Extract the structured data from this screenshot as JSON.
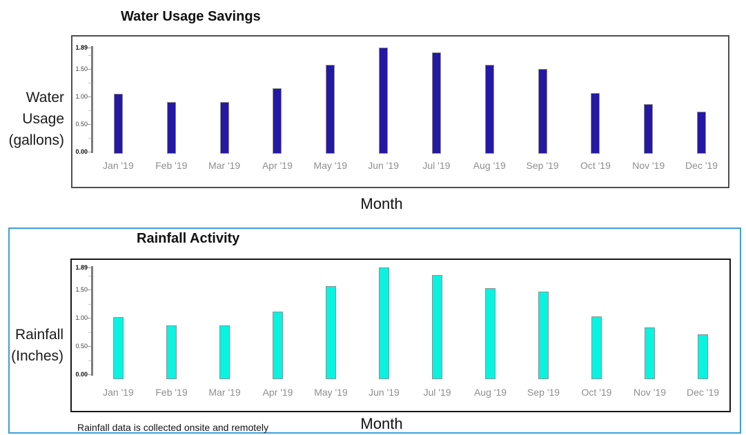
{
  "charts": [
    {
      "title": "Water Usage Savings",
      "ylabel_lines": [
        "Water",
        "Usage",
        "(gallons)"
      ],
      "xlabel": "Month"
    },
    {
      "title": "Rainfall Activity",
      "ylabel_lines": [
        "Rainfall",
        "(Inches)"
      ],
      "xlabel": "Month",
      "footnote": "Rainfall data is collected onsite and remotely"
    }
  ],
  "chart_data": [
    {
      "type": "bar",
      "title": "Water Usage Savings",
      "xlabel": "Month",
      "ylabel": "Water Usage (gallons)",
      "categories": [
        "Jan '19",
        "Feb '19",
        "Mar '19",
        "Apr '19",
        "May '19",
        "Jun '19",
        "Jul '19",
        "Aug '19",
        "Sep '19",
        "Oct '19",
        "Nov '19",
        "Dec '19"
      ],
      "values": [
        1.05,
        0.9,
        0.9,
        1.15,
        1.58,
        1.89,
        1.8,
        1.57,
        1.5,
        1.06,
        0.86,
        0.73
      ],
      "ylim": [
        0,
        1.89
      ],
      "yticks": [
        "0.00",
        "0.50",
        "1.00",
        "1.50",
        "1.89"
      ],
      "grid": false,
      "legend": "none",
      "bar_color": "#2418a5",
      "bar_border": "#8f8f8f"
    },
    {
      "type": "bar",
      "title": "Rainfall Activity",
      "xlabel": "Month",
      "ylabel": "Rainfall (Inches)",
      "categories": [
        "Jan '19",
        "Feb '19",
        "Mar '19",
        "Apr '19",
        "May '19",
        "Jun '19",
        "Jul '19",
        "Aug '19",
        "Sep '19",
        "Oct '19",
        "Nov '19",
        "Dec '19"
      ],
      "values": [
        1.01,
        0.87,
        0.87,
        1.11,
        1.56,
        1.89,
        1.76,
        1.53,
        1.46,
        1.02,
        0.83,
        0.71
      ],
      "ylim": [
        0,
        1.89
      ],
      "yticks": [
        "0.00",
        "0.50",
        "1.00",
        "1.50",
        "1.89"
      ],
      "grid": false,
      "legend": "none",
      "bar_color": "#09f3e1",
      "bar_border": "#8f8f8f"
    }
  ],
  "colors": {
    "water_bar": "#2418a5",
    "rainfall_bar": "#09f3e1",
    "rainfall_panel_border": "#3d9fdb",
    "axis_line": "#7d7d7d",
    "month_label": "#8e8e8e"
  }
}
